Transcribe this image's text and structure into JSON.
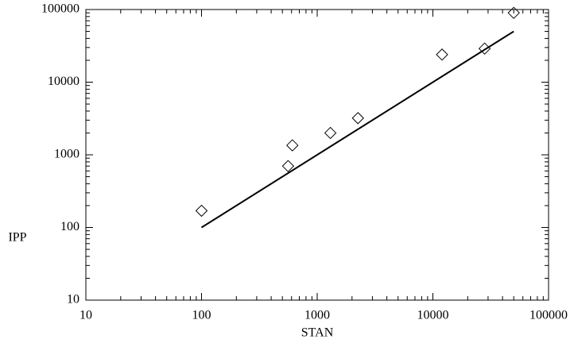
{
  "chart_data": {
    "type": "scatter",
    "x_label": "STAN",
    "y_label": "IPP",
    "xlim": [
      10,
      100000
    ],
    "ylim": [
      10,
      100000
    ],
    "xticks": [
      10,
      100,
      1000,
      10000,
      100000
    ],
    "yticks": [
      10,
      100,
      1000,
      10000,
      100000
    ],
    "log_x": true,
    "log_y": true,
    "series": [
      {
        "type": "scatter",
        "marker": "diamond",
        "color": "#000000",
        "x": [
          100,
          560,
          610,
          1300,
          2250,
          12000,
          28000,
          50000
        ],
        "values": [
          170,
          700,
          1350,
          2000,
          3200,
          24000,
          29000,
          90000
        ]
      },
      {
        "type": "line",
        "color": "#000000",
        "x": [
          100,
          50000
        ],
        "values": [
          100,
          50000
        ]
      }
    ]
  }
}
